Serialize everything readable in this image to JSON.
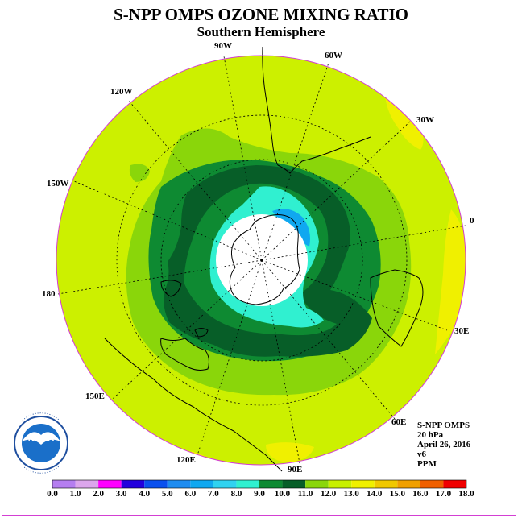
{
  "title": "S-NPP OMPS OZONE MIXING RATIO",
  "subtitle": "Southern Hemisphere",
  "longitude_labels": [
    "90W",
    "60W",
    "30W",
    "0",
    "30E",
    "60E",
    "90E",
    "120E",
    "150E",
    "180",
    "150W",
    "120W"
  ],
  "info": {
    "instrument": "S-NPP OMPS",
    "level": "20 hPa",
    "date": "April 26, 2016",
    "version": "v6",
    "units": "PPM"
  },
  "logo_text": "NOAA",
  "logo_ring_text": "NATIONAL OCEANIC AND ATMOSPHERIC ADMINISTRATION U.S. DEPARTMENT OF COMMERCE",
  "colorbar": {
    "ticks": [
      "0.0",
      "1.0",
      "2.0",
      "3.0",
      "4.0",
      "5.0",
      "6.0",
      "7.0",
      "8.0",
      "9.0",
      "10.0",
      "11.0",
      "12.0",
      "13.0",
      "14.0",
      "15.0",
      "16.0",
      "17.0",
      "18.0"
    ],
    "colors": [
      "#b57ef0",
      "#dca6ec",
      "#ff00ff",
      "#2200dd",
      "#0a50ee",
      "#1e8cf0",
      "#10a8f0",
      "#30d2f0",
      "#30f0d0",
      "#0e8a32",
      "#075e28",
      "#8ad60a",
      "#c8f000",
      "#f0f000",
      "#f0c800",
      "#f0a000",
      "#f06000",
      "#f00000",
      "#8c5a40"
    ]
  },
  "map_colors": {
    "background": "#ccf000",
    "level_11": "#8ad60a",
    "level_9": "#0e8a32",
    "level_10": "#075e28",
    "level_8": "#30f0d0",
    "level_6": "#10a8f0",
    "level_13": "#f0f000",
    "pole": "#ffffff",
    "border": "#d33fd3"
  }
}
